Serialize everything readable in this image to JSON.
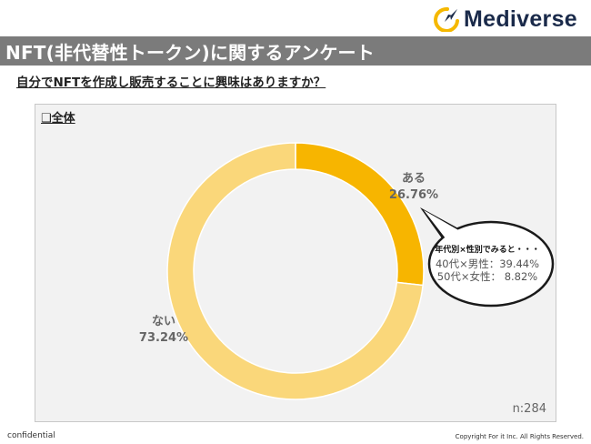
{
  "brand": {
    "name": "Mediverse",
    "logo_colors": [
      "#1a2a4a",
      "#f5b800"
    ]
  },
  "page_title": "NFT(非代替性トークン)に関するアンケート",
  "question": "自分でNFTを作成し販売することに興味はありますか？",
  "panel_label": "❑全体",
  "sample_size": "n:284",
  "callout": {
    "heading": "年代別×性別でみると・・・",
    "line1": "40代×男性：39.44%",
    "line2": "50代×女性： 8.82%"
  },
  "footer": {
    "left": "confidential",
    "right": "Copyright For it Inc. All Rights Reserved."
  },
  "chart_data": {
    "type": "pie",
    "donut": true,
    "categories": [
      "ある",
      "ない"
    ],
    "values": [
      26.76,
      73.24
    ],
    "labels": [
      "26.76%",
      "73.24%"
    ],
    "colors": [
      "#f7b500",
      "#fad77a"
    ],
    "label_color": "#666666"
  }
}
